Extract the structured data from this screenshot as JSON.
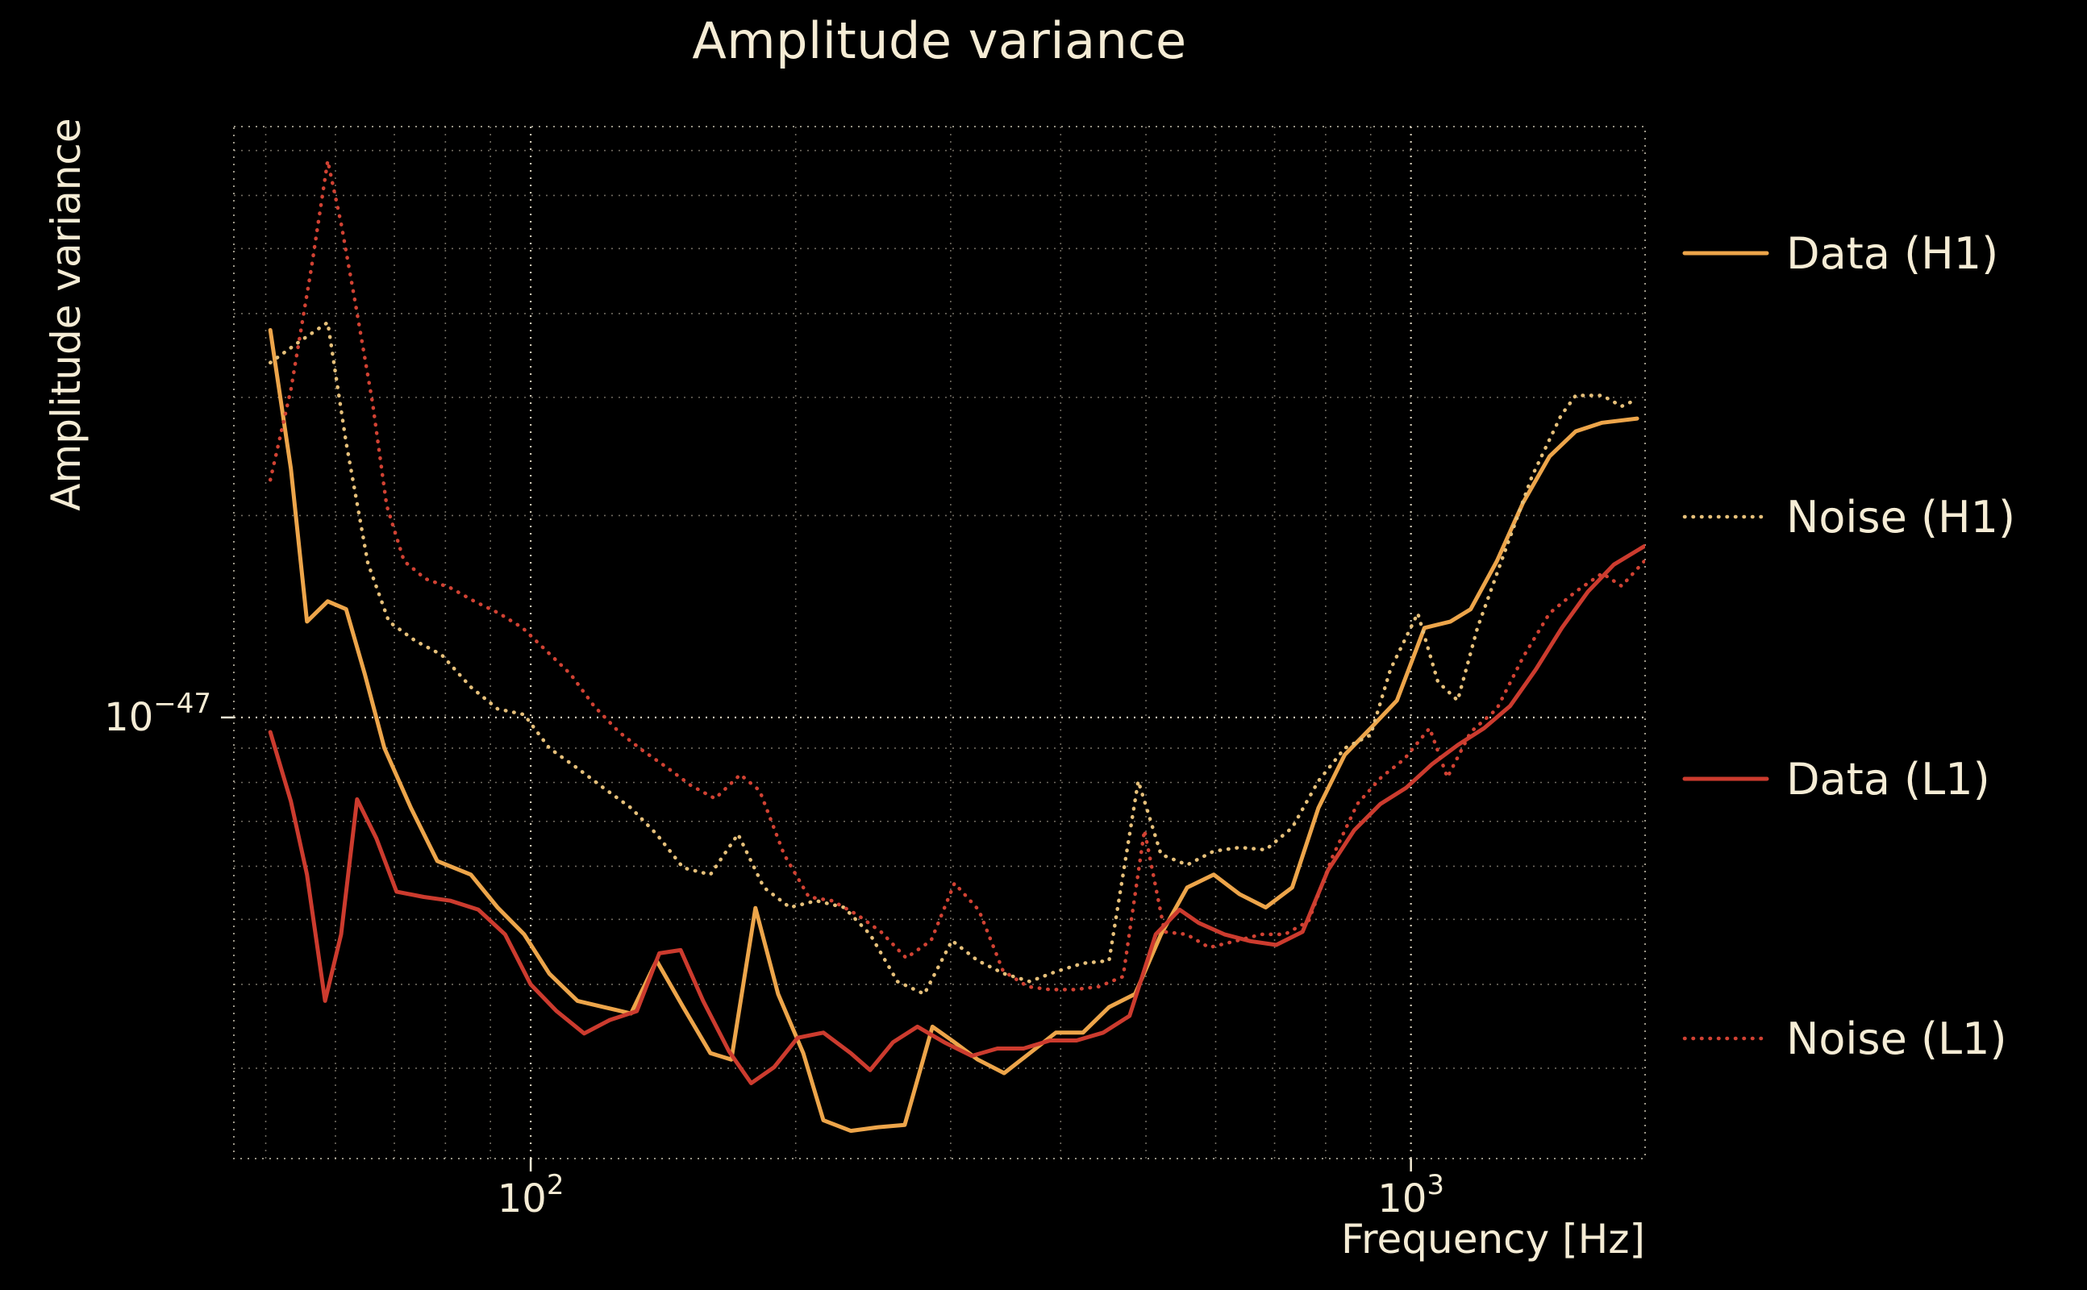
{
  "chart_data": {
    "type": "line",
    "title": "Amplitude variance",
    "xlabel": "Frequency [Hz]",
    "ylabel": "Amplitude variance",
    "xscale": "log",
    "yscale": "log",
    "xlim": [
      46,
      1845
    ],
    "ylim": [
      2.2e-48,
      7.6e-47
    ],
    "x_ticks": [
      {
        "value": 100,
        "label": "10^2"
      },
      {
        "value": 1000,
        "label": "10^3"
      }
    ],
    "y_ticks": [
      {
        "value": 1e-47,
        "label": "10^-47"
      }
    ],
    "grid": {
      "major": true,
      "minor": true,
      "style": "dotted"
    },
    "legend_position": "right",
    "background_color": "#000000",
    "text_color": "#f5ecd5",
    "grid_color": "#f5ecd5",
    "series": [
      {
        "name": "Data (H1)",
        "color": "#eda54a",
        "line_style": "solid",
        "points": [
          [
            50.6,
            3.78e-47
          ],
          [
            53.4,
            2.35e-47
          ],
          [
            55.7,
            1.39e-47
          ],
          [
            58.8,
            1.49e-47
          ],
          [
            61.7,
            1.45e-47
          ],
          [
            64.8,
            1.16e-47
          ],
          [
            68.2,
            9e-48
          ],
          [
            73.1,
            7.33e-48
          ],
          [
            78.3,
            6.11e-48
          ],
          [
            85.5,
            5.83e-48
          ],
          [
            91.7,
            5.21e-48
          ],
          [
            98.3,
            4.75e-48
          ],
          [
            105,
            4.15e-48
          ],
          [
            113,
            3.78e-48
          ],
          [
            121,
            3.7e-48
          ],
          [
            130,
            3.62e-48
          ],
          [
            139,
            4.34e-48
          ],
          [
            149,
            3.7e-48
          ],
          [
            160,
            3.16e-48
          ],
          [
            169,
            3.09e-48
          ],
          [
            180,
            5.2e-48
          ],
          [
            191,
            3.87e-48
          ],
          [
            204,
            3.16e-48
          ],
          [
            215,
            2.51e-48
          ],
          [
            231,
            2.42e-48
          ],
          [
            248,
            2.45e-48
          ],
          [
            266,
            2.47e-48
          ],
          [
            286,
            3.46e-48
          ],
          [
            301,
            3.3e-48
          ],
          [
            322,
            3.09e-48
          ],
          [
            345,
            2.95e-48
          ],
          [
            369,
            3.16e-48
          ],
          [
            395,
            3.39e-48
          ],
          [
            424,
            3.39e-48
          ],
          [
            454,
            3.7e-48
          ],
          [
            486,
            3.87e-48
          ],
          [
            520,
            4.75e-48
          ],
          [
            557,
            5.58e-48
          ],
          [
            597,
            5.83e-48
          ],
          [
            639,
            5.45e-48
          ],
          [
            684,
            5.21e-48
          ],
          [
            733,
            5.58e-48
          ],
          [
            785,
            7.33e-48
          ],
          [
            841,
            8.8e-48
          ],
          [
            900,
            9.64e-48
          ],
          [
            964,
            1.06e-47
          ],
          [
            1036,
            1.36e-47
          ],
          [
            1109,
            1.39e-47
          ],
          [
            1169,
            1.45e-47
          ],
          [
            1252,
            1.71e-47
          ],
          [
            1341,
            2.09e-47
          ],
          [
            1437,
            2.45e-47
          ],
          [
            1539,
            2.67e-47
          ],
          [
            1649,
            2.75e-47
          ],
          [
            1807,
            2.79e-47
          ]
        ]
      },
      {
        "name": "Noise (H1)",
        "color": "#e6c07a",
        "line_style": "dotted",
        "points": [
          [
            50.6,
            3.38e-47
          ],
          [
            54.4,
            3.62e-47
          ],
          [
            58.8,
            3.88e-47
          ],
          [
            61.7,
            2.57e-47
          ],
          [
            65.3,
            1.7e-47
          ],
          [
            69.0,
            1.39e-47
          ],
          [
            74.0,
            1.3e-47
          ],
          [
            79.2,
            1.24e-47
          ],
          [
            85.5,
            1.11e-47
          ],
          [
            91.7,
            1.03e-47
          ],
          [
            98.3,
            1.01e-47
          ],
          [
            105,
            9e-48
          ],
          [
            113,
            8.4e-48
          ],
          [
            121,
            7.85e-48
          ],
          [
            130,
            7.33e-48
          ],
          [
            139,
            6.7e-48
          ],
          [
            149,
            5.97e-48
          ],
          [
            160,
            5.83e-48
          ],
          [
            172,
            6.7e-48
          ],
          [
            184,
            5.58e-48
          ],
          [
            197,
            5.21e-48
          ],
          [
            211,
            5.33e-48
          ],
          [
            227,
            5.21e-48
          ],
          [
            243,
            4.75e-48
          ],
          [
            261,
            4.04e-48
          ],
          [
            280,
            3.87e-48
          ],
          [
            301,
            4.65e-48
          ],
          [
            322,
            4.34e-48
          ],
          [
            345,
            4.15e-48
          ],
          [
            369,
            4.04e-48
          ],
          [
            395,
            4.18e-48
          ],
          [
            424,
            4.3e-48
          ],
          [
            454,
            4.34e-48
          ],
          [
            490,
            8.04e-48
          ],
          [
            520,
            6.25e-48
          ],
          [
            557,
            6.03e-48
          ],
          [
            597,
            6.32e-48
          ],
          [
            639,
            6.4e-48
          ],
          [
            684,
            6.35e-48
          ],
          [
            733,
            6.85e-48
          ],
          [
            785,
            8.04e-48
          ],
          [
            841,
            9e-48
          ],
          [
            900,
            9.42e-48
          ],
          [
            948,
            1.18e-47
          ],
          [
            1018,
            1.43e-47
          ],
          [
            1073,
            1.13e-47
          ],
          [
            1130,
            1.06e-47
          ],
          [
            1190,
            1.36e-47
          ],
          [
            1273,
            1.74e-47
          ],
          [
            1373,
            2.29e-47
          ],
          [
            1481,
            2.82e-47
          ],
          [
            1539,
            3.02e-47
          ],
          [
            1649,
            3.02e-47
          ],
          [
            1735,
            2.91e-47
          ],
          [
            1807,
            2.98e-47
          ]
        ]
      },
      {
        "name": "Data (L1)",
        "color": "#cc3b2e",
        "line_style": "solid",
        "points": [
          [
            50.6,
            9.51e-48
          ],
          [
            53.4,
            7.5e-48
          ],
          [
            55.7,
            5.83e-48
          ],
          [
            58.4,
            3.78e-48
          ],
          [
            60.9,
            4.75e-48
          ],
          [
            63.5,
            7.55e-48
          ],
          [
            66.8,
            6.6e-48
          ],
          [
            70.4,
            5.5e-48
          ],
          [
            75.6,
            5.4e-48
          ],
          [
            81.1,
            5.33e-48
          ],
          [
            87.2,
            5.17e-48
          ],
          [
            93.5,
            4.75e-48
          ],
          [
            100,
            4e-48
          ],
          [
            107,
            3.65e-48
          ],
          [
            115,
            3.38e-48
          ],
          [
            123,
            3.54e-48
          ],
          [
            132,
            3.65e-48
          ],
          [
            140,
            4.45e-48
          ],
          [
            148,
            4.5e-48
          ],
          [
            157,
            3.78e-48
          ],
          [
            168,
            3.18e-48
          ],
          [
            178,
            2.85e-48
          ],
          [
            189,
            3.01e-48
          ],
          [
            201,
            3.33e-48
          ],
          [
            215,
            3.39e-48
          ],
          [
            231,
            3.16e-48
          ],
          [
            243,
            2.98e-48
          ],
          [
            258,
            3.28e-48
          ],
          [
            275,
            3.46e-48
          ],
          [
            295,
            3.28e-48
          ],
          [
            317,
            3.13e-48
          ],
          [
            339,
            3.21e-48
          ],
          [
            363,
            3.21e-48
          ],
          [
            389,
            3.3e-48
          ],
          [
            417,
            3.3e-48
          ],
          [
            447,
            3.39e-48
          ],
          [
            479,
            3.59e-48
          ],
          [
            513,
            4.75e-48
          ],
          [
            546,
            5.17e-48
          ],
          [
            574,
            4.94e-48
          ],
          [
            614,
            4.75e-48
          ],
          [
            657,
            4.64e-48
          ],
          [
            703,
            4.58e-48
          ],
          [
            753,
            4.79e-48
          ],
          [
            805,
            5.92e-48
          ],
          [
            862,
            6.79e-48
          ],
          [
            923,
            7.43e-48
          ],
          [
            987,
            7.85e-48
          ],
          [
            1057,
            8.52e-48
          ],
          [
            1131,
            9.1e-48
          ],
          [
            1211,
            9.64e-48
          ],
          [
            1296,
            1.04e-47
          ],
          [
            1387,
            1.18e-47
          ],
          [
            1484,
            1.36e-47
          ],
          [
            1589,
            1.54e-47
          ],
          [
            1700,
            1.69e-47
          ],
          [
            1841,
            1.8e-47
          ]
        ]
      },
      {
        "name": "Noise (L1)",
        "color": "#d14233",
        "line_style": "dotted",
        "points": [
          [
            50.6,
            2.26e-47
          ],
          [
            53.4,
            3.08e-47
          ],
          [
            56.3,
            4.65e-47
          ],
          [
            58.8,
            6.76e-47
          ],
          [
            60.9,
            5.45e-47
          ],
          [
            63.2,
            4.15e-47
          ],
          [
            66.1,
            2.95e-47
          ],
          [
            68.6,
            2.07e-47
          ],
          [
            71.8,
            1.71e-47
          ],
          [
            75.9,
            1.61e-47
          ],
          [
            81.1,
            1.56e-47
          ],
          [
            86.3,
            1.49e-47
          ],
          [
            92.0,
            1.43e-47
          ],
          [
            97.9,
            1.36e-47
          ],
          [
            104,
            1.26e-47
          ],
          [
            111,
            1.16e-47
          ],
          [
            118,
            1.04e-47
          ],
          [
            126,
            9.51e-48
          ],
          [
            134,
            8.93e-48
          ],
          [
            143,
            8.41e-48
          ],
          [
            152,
            7.92e-48
          ],
          [
            162,
            7.57e-48
          ],
          [
            173,
            8.22e-48
          ],
          [
            182,
            7.78e-48
          ],
          [
            194,
            6.25e-48
          ],
          [
            207,
            5.4e-48
          ],
          [
            220,
            5.33e-48
          ],
          [
            235,
            5.08e-48
          ],
          [
            250,
            4.79e-48
          ],
          [
            267,
            4.38e-48
          ],
          [
            285,
            4.65e-48
          ],
          [
            303,
            5.66e-48
          ],
          [
            323,
            5.16e-48
          ],
          [
            344,
            4.19e-48
          ],
          [
            367,
            3.97e-48
          ],
          [
            389,
            3.93e-48
          ],
          [
            415,
            3.93e-48
          ],
          [
            442,
            3.97e-48
          ],
          [
            471,
            4.11e-48
          ],
          [
            498,
            6.79e-48
          ],
          [
            525,
            4.79e-48
          ],
          [
            556,
            4.75e-48
          ],
          [
            590,
            4.54e-48
          ],
          [
            635,
            4.65e-48
          ],
          [
            676,
            4.75e-48
          ],
          [
            719,
            4.75e-48
          ],
          [
            765,
            4.97e-48
          ],
          [
            814,
            6.19e-48
          ],
          [
            869,
            7.43e-48
          ],
          [
            925,
            8.14e-48
          ],
          [
            983,
            8.67e-48
          ],
          [
            1050,
            9.64e-48
          ],
          [
            1100,
            8.14e-48
          ],
          [
            1169,
            9.51e-48
          ],
          [
            1252,
            1.03e-47
          ],
          [
            1341,
            1.23e-47
          ],
          [
            1437,
            1.43e-47
          ],
          [
            1539,
            1.54e-47
          ],
          [
            1649,
            1.64e-47
          ],
          [
            1735,
            1.57e-47
          ],
          [
            1841,
            1.71e-47
          ]
        ]
      }
    ]
  }
}
